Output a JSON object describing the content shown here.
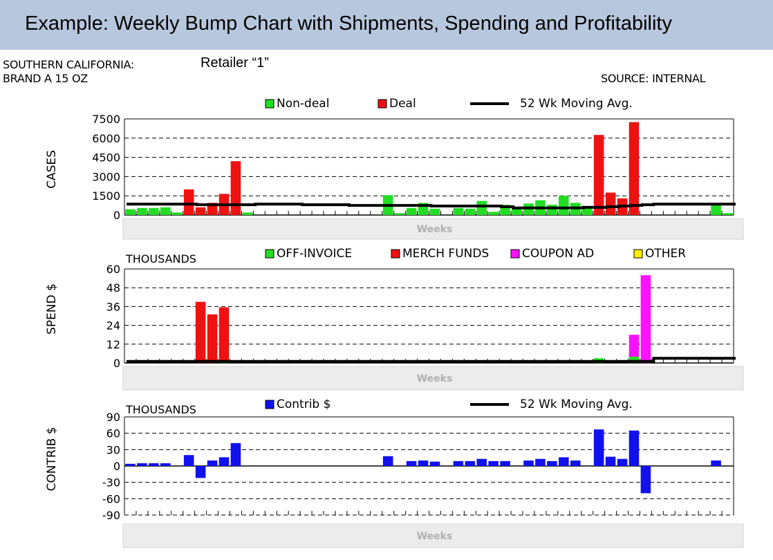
{
  "header": {
    "title": "Example:   Weekly Bump Chart with Shipments, Spending and Profitability",
    "region": "SOUTHERN CALIFORNIA:",
    "retailer": "Retailer “1”",
    "brand": "BRAND A 15 OZ",
    "source": "SOURCE: INTERNAL"
  },
  "colors": {
    "green": "#22dd22",
    "red": "#ee1111",
    "magenta": "#ff11ff",
    "yellow": "#ffee00",
    "blue": "#1111ee",
    "line": "#000000",
    "weeks_band": "#ececec"
  },
  "chart_data": [
    {
      "type": "bar",
      "ylabel": "CASES",
      "xlabel": "Weeks",
      "ylim": [
        0,
        7500
      ],
      "yticks": [
        "0",
        "1500",
        "3000",
        "4500",
        "6000",
        "7500"
      ],
      "grid": true,
      "legend": [
        {
          "name": "Non-deal",
          "kind": "box",
          "color": "#22dd22"
        },
        {
          "name": "Deal",
          "kind": "box",
          "color": "#ee1111"
        },
        {
          "name": "52 Wk Moving Avg.",
          "kind": "line",
          "color": "#000000"
        }
      ],
      "weeks": 52,
      "series": [
        {
          "name": "Non-deal",
          "values": [
            450,
            550,
            550,
            600,
            200,
            0,
            0,
            0,
            0,
            0,
            200,
            0,
            0,
            0,
            0,
            0,
            0,
            0,
            0,
            0,
            0,
            0,
            1550,
            150,
            550,
            950,
            500,
            0,
            550,
            500,
            1100,
            250,
            800,
            500,
            900,
            1150,
            800,
            1500,
            950,
            650,
            0,
            0,
            0,
            0,
            0,
            0,
            0,
            0,
            0,
            0,
            800,
            150
          ]
        },
        {
          "name": "Deal",
          "values": [
            0,
            0,
            0,
            0,
            0,
            2000,
            600,
            950,
            1650,
            4200,
            0,
            0,
            0,
            0,
            0,
            0,
            0,
            0,
            0,
            0,
            0,
            0,
            0,
            0,
            0,
            0,
            0,
            0,
            0,
            0,
            0,
            0,
            0,
            0,
            0,
            0,
            0,
            0,
            0,
            0,
            6250,
            1750,
            1300,
            7250,
            0,
            0,
            0,
            0,
            0,
            0,
            0,
            0
          ]
        },
        {
          "name": "52 Wk Moving Avg.",
          "values": [
            850,
            850,
            850,
            850,
            850,
            850,
            800,
            800,
            800,
            800,
            800,
            850,
            850,
            850,
            850,
            800,
            800,
            800,
            800,
            750,
            750,
            750,
            750,
            750,
            750,
            750,
            700,
            700,
            700,
            700,
            700,
            700,
            650,
            550,
            550,
            550,
            550,
            550,
            550,
            600,
            600,
            650,
            700,
            750,
            800,
            850,
            850,
            850,
            850,
            850,
            850,
            850
          ]
        }
      ]
    },
    {
      "type": "bar",
      "ylabel": "SPEND $",
      "xlabel": "Weeks",
      "units_label": "THOUSANDS",
      "ylim": [
        0,
        60
      ],
      "yticks": [
        "0",
        "12",
        "24",
        "36",
        "48",
        "60"
      ],
      "grid": true,
      "legend": [
        {
          "name": "OFF-INVOICE",
          "kind": "box",
          "color": "#22dd22"
        },
        {
          "name": "MERCH FUNDS",
          "kind": "box",
          "color": "#ee1111"
        },
        {
          "name": "COUPON AD",
          "kind": "box",
          "color": "#ff11ff"
        },
        {
          "name": "OTHER",
          "kind": "box",
          "color": "#ffee00"
        }
      ],
      "weeks": 52,
      "series": [
        {
          "name": "OFF-INVOICE",
          "values": [
            0,
            0,
            0,
            0,
            0,
            0,
            0,
            0,
            1.5,
            0,
            0,
            0,
            0,
            0,
            0,
            0,
            0,
            0,
            0,
            0,
            0,
            0,
            0,
            0,
            0,
            0,
            0,
            0,
            0,
            0,
            0,
            0,
            0,
            0,
            0,
            0,
            0,
            0,
            0,
            0,
            3,
            0,
            0,
            4,
            0,
            0,
            0,
            0,
            0,
            0,
            0,
            0
          ]
        },
        {
          "name": "MERCH FUNDS",
          "values": [
            0,
            0,
            0,
            0,
            0,
            0,
            39,
            31,
            34,
            0,
            0,
            0,
            0,
            0,
            0,
            0,
            0,
            0,
            0,
            0,
            0,
            0,
            0,
            0,
            0,
            0,
            0,
            0,
            0,
            0,
            0,
            0,
            0,
            0,
            0,
            0,
            0,
            0,
            0,
            0,
            0,
            0,
            0,
            0,
            0,
            0,
            0,
            0,
            0,
            0,
            0,
            0
          ]
        },
        {
          "name": "COUPON AD",
          "values": [
            0,
            0,
            0,
            0,
            0,
            0,
            0,
            0,
            0,
            0,
            0,
            0,
            0,
            0,
            0,
            0,
            0,
            0,
            0,
            0,
            0,
            0,
            0,
            0,
            0,
            0,
            0,
            0,
            0,
            0,
            0,
            0,
            0,
            0,
            0,
            0,
            0,
            0,
            0,
            0,
            0,
            0,
            0,
            14,
            56,
            0,
            0,
            0,
            0,
            0,
            0,
            0
          ]
        },
        {
          "name": "",
          "values": [
            1,
            1,
            1,
            1,
            1,
            1,
            1,
            1,
            1,
            1,
            1,
            1,
            1,
            1,
            1,
            1,
            1,
            1,
            1,
            1,
            1,
            1,
            1,
            1,
            1,
            1,
            1,
            1,
            1,
            1,
            1,
            1,
            1,
            1,
            1,
            1,
            1,
            1,
            1,
            1,
            1,
            1,
            1,
            1,
            1,
            3,
            3,
            3,
            3,
            3,
            3,
            3
          ]
        }
      ]
    },
    {
      "type": "bar",
      "ylabel": "CONTRIB $",
      "xlabel": "Weeks",
      "units_label": "THOUSANDS",
      "ylim": [
        -90,
        90
      ],
      "yticks": [
        "-90",
        "-60",
        "-30",
        "0",
        "30",
        "60",
        "90"
      ],
      "grid": true,
      "legend": [
        {
          "name": "Contrib $",
          "kind": "box",
          "color": "#1111ee"
        },
        {
          "name": "52 Wk Moving Avg.",
          "kind": "line",
          "color": "#000000"
        }
      ],
      "weeks": 52,
      "series": [
        {
          "name": "Contrib $",
          "values": [
            4,
            5,
            5,
            5,
            0,
            20,
            -22,
            10,
            16,
            42,
            0,
            0,
            0,
            0,
            0,
            0,
            0,
            0,
            0,
            0,
            0,
            0,
            18,
            0,
            9,
            10,
            8,
            0,
            9,
            9,
            13,
            9,
            9,
            0,
            10,
            13,
            9,
            16,
            10,
            0,
            67,
            17,
            13,
            65,
            -50,
            0,
            0,
            0,
            0,
            0,
            10,
            0
          ]
        }
      ]
    }
  ]
}
